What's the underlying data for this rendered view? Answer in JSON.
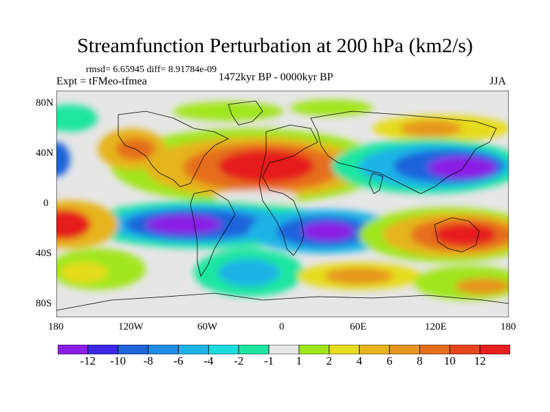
{
  "header": {
    "title": "Streamfunction Perturbation at 200 hPa (km2/s)",
    "stats": "rmsd= 6.65945 diff= 8.91784e-09",
    "experiment": "Expt = tFMeo-tfmea",
    "period": "1472kyr BP - 0000kyr BP",
    "season": "JJA"
  },
  "map": {
    "lat_labels": [
      "80N",
      "40N",
      "0",
      "40S",
      "80S"
    ],
    "lon_labels": [
      "180",
      "120W",
      "60W",
      "0",
      "60E",
      "120E",
      "180"
    ]
  },
  "colorbar": {
    "labels": [
      "-12",
      "-10",
      "-8",
      "-6",
      "-4",
      "-2",
      "-1",
      "1",
      "2",
      "4",
      "6",
      "8",
      "10",
      "12"
    ],
    "colors": [
      "#8a1ee6",
      "#3c28e6",
      "#1e64dc",
      "#1e8ce6",
      "#1eb4e6",
      "#1edcdc",
      "#1ee6a0",
      "#e6e6e6",
      "#a0e61e",
      "#e6dc1e",
      "#e6b41e",
      "#e6961e",
      "#e66e1e",
      "#e6461e",
      "#e61e1e"
    ]
  }
}
